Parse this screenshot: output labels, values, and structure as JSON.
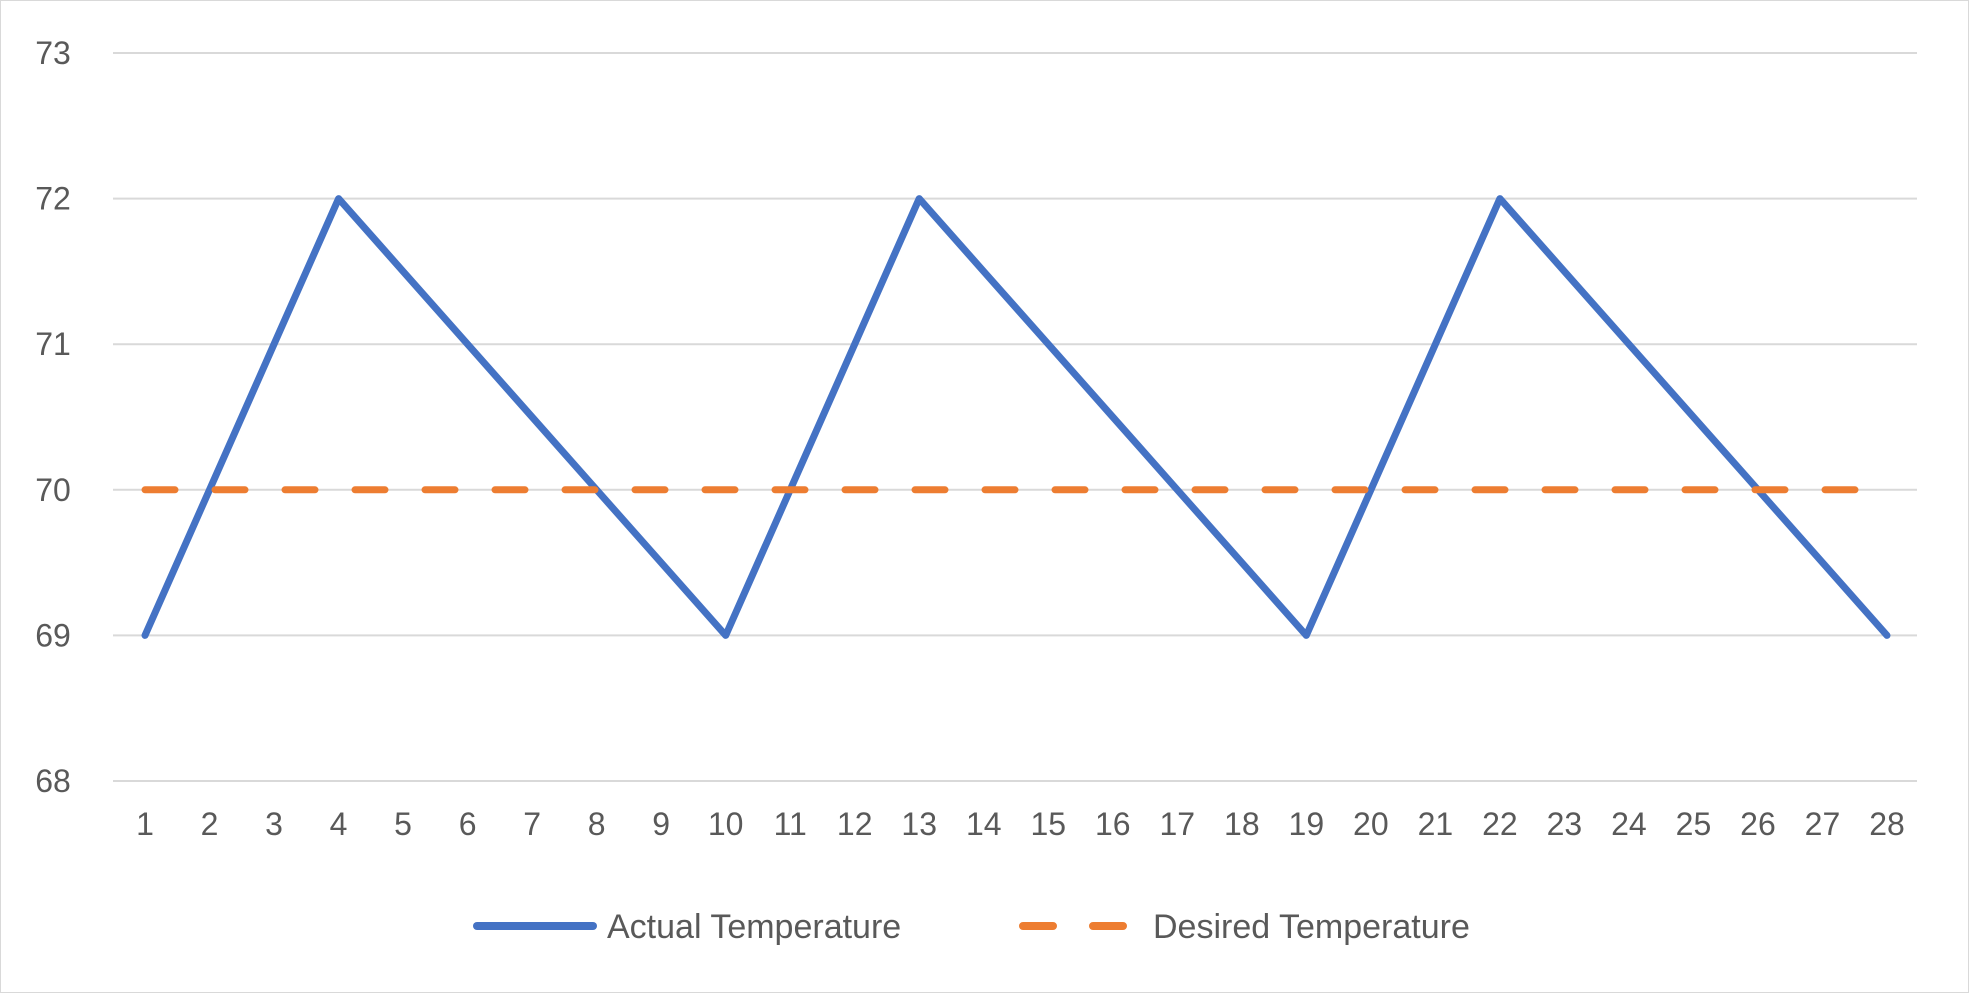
{
  "chart_data": {
    "type": "line",
    "title": "",
    "xlabel": "",
    "ylabel": "",
    "categories": [
      "1",
      "2",
      "3",
      "4",
      "5",
      "6",
      "7",
      "8",
      "9",
      "10",
      "11",
      "12",
      "13",
      "14",
      "15",
      "16",
      "17",
      "18",
      "19",
      "20",
      "21",
      "22",
      "23",
      "24",
      "25",
      "26",
      "27",
      "28"
    ],
    "ylim": [
      68,
      73
    ],
    "yticks": [
      68,
      69,
      70,
      71,
      72,
      73
    ],
    "grid": true,
    "legend_position": "bottom",
    "series": [
      {
        "name": "Actual Temperature",
        "color": "#4472c4",
        "style": "solid",
        "values": [
          69,
          70,
          71,
          72,
          71.5,
          71,
          70.5,
          70,
          69.5,
          69,
          70,
          71,
          72,
          71.5,
          71,
          70.5,
          70,
          69.5,
          69,
          70,
          71,
          72,
          71.5,
          71,
          70.5,
          70,
          69.5,
          69
        ]
      },
      {
        "name": "Desired Temperature",
        "color": "#ed7d31",
        "style": "dashed",
        "values": [
          70,
          70,
          70,
          70,
          70,
          70,
          70,
          70,
          70,
          70,
          70,
          70,
          70,
          70,
          70,
          70,
          70,
          70,
          70,
          70,
          70,
          70,
          70,
          70,
          70,
          70,
          70,
          70
        ]
      }
    ]
  },
  "colors": {
    "grid": "#d9d9d9",
    "text": "#595959",
    "border": "#d9d9d9"
  }
}
